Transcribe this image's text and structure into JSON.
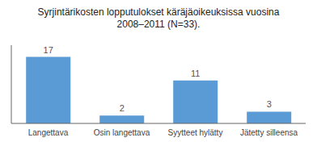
{
  "chart_data": {
    "type": "bar",
    "title": "Syrjintärikosten lopputulokset käräjäoikeuksissa vuosina\n2008–2011 (N=33).",
    "categories": [
      "Langettava",
      "Osin langettava",
      "Syytteet hylätty",
      "Jätetty silleensa"
    ],
    "values": [
      17,
      2,
      11,
      3
    ],
    "color": "#5b9bd5",
    "ylim": [
      0,
      20
    ],
    "grid": false,
    "data_labels": true,
    "tick_labels": "x"
  }
}
